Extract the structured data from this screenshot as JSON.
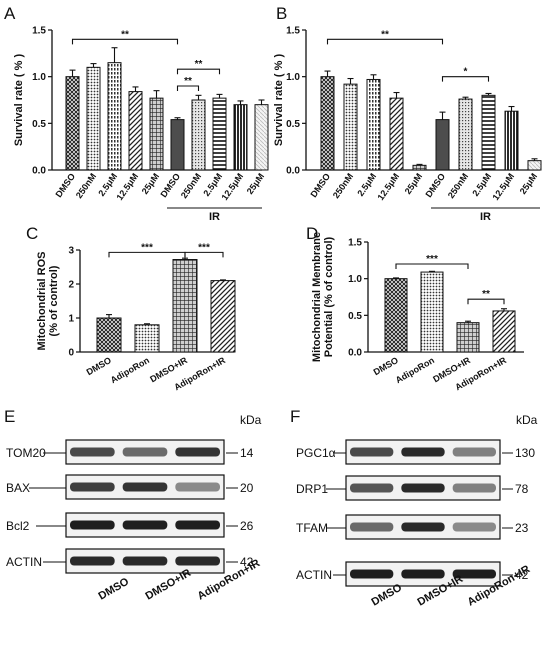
{
  "panels": {
    "A": "A",
    "B": "B",
    "C": "C",
    "D": "D",
    "E": "E",
    "F": "F"
  },
  "chart_data": [
    {
      "panel": "A",
      "type": "bar",
      "ylabel": "Survival rate ( % )",
      "ylim": [
        0,
        1.5
      ],
      "yticks": [
        "0.0",
        "0.5",
        "1.0",
        "1.5"
      ],
      "categories": [
        "DMSO",
        "250nM",
        "2.5μM",
        "12.5μM",
        "25μM",
        "DMSO",
        "250nM",
        "2.5μM",
        "12.5μM",
        "25μM"
      ],
      "values": [
        1.0,
        1.1,
        1.15,
        0.84,
        0.77,
        0.54,
        0.75,
        0.77,
        0.7,
        0.7
      ],
      "errors": [
        0.07,
        0.04,
        0.16,
        0.05,
        0.08,
        0.02,
        0.05,
        0.04,
        0.04,
        0.05
      ],
      "patterns": [
        "cross",
        "dots",
        "vdots",
        "rdiag",
        "grid",
        "solid",
        "dense",
        "hline",
        "vline",
        "light"
      ],
      "group_label": "IR",
      "group_start": 5,
      "annotations": [
        {
          "from": 0,
          "to": 5,
          "y": 1.4,
          "text": "**"
        },
        {
          "from": 5,
          "to": 7,
          "y": 1.08,
          "text": "**"
        },
        {
          "from": 5,
          "to": 6,
          "y": 0.9,
          "text": "**"
        }
      ]
    },
    {
      "panel": "B",
      "type": "bar",
      "ylabel": "Survival rate ( % )",
      "ylim": [
        0,
        1.5
      ],
      "yticks": [
        "0.0",
        "0.5",
        "1.0",
        "1.5"
      ],
      "categories": [
        "DMSO",
        "250nM",
        "2.5μM",
        "12.5μM",
        "25μM",
        "DMSO",
        "250nM",
        "2.5μM",
        "12.5μM",
        "25μM"
      ],
      "values": [
        1.0,
        0.92,
        0.97,
        0.77,
        0.05,
        0.54,
        0.76,
        0.8,
        0.63,
        0.1
      ],
      "errors": [
        0.06,
        0.06,
        0.05,
        0.06,
        0.01,
        0.08,
        0.02,
        0.02,
        0.05,
        0.02
      ],
      "patterns": [
        "cross",
        "dots",
        "vdots",
        "rdiag",
        "grid",
        "solid",
        "dense",
        "hline",
        "vline",
        "light"
      ],
      "group_label": "IR",
      "group_start": 5,
      "annotations": [
        {
          "from": 0,
          "to": 5,
          "y": 1.4,
          "text": "**"
        },
        {
          "from": 5,
          "to": 7,
          "y": 1.0,
          "text": "*"
        }
      ]
    },
    {
      "panel": "C",
      "type": "bar",
      "ylabel": "Mitochondrial ROS\n(% of control)",
      "ylim": [
        0,
        3
      ],
      "yticks": [
        "0",
        "1",
        "2",
        "3"
      ],
      "categories": [
        "DMSO",
        "AdipoRon",
        "DMSO+IR",
        "AdipoRon+IR"
      ],
      "values": [
        1.0,
        0.8,
        2.72,
        2.1
      ],
      "errors": [
        0.1,
        0.03,
        0.04,
        0.02
      ],
      "patterns": [
        "cross",
        "dots",
        "grid",
        "rdiag"
      ],
      "annotations": [
        {
          "from": 0,
          "to": 2,
          "y": 2.93,
          "text": "***"
        },
        {
          "from": 2,
          "to": 3,
          "y": 2.93,
          "text": "***"
        }
      ]
    },
    {
      "panel": "D",
      "type": "bar",
      "ylabel": "Mitochondrial Membrane\nPotential (% of control)",
      "ylim": [
        0,
        1.5
      ],
      "yticks": [
        "0.0",
        "0.5",
        "1.0",
        "1.5"
      ],
      "categories": [
        "DMSO",
        "AdipoRon",
        "DMSO+IR",
        "AdipoRon+IR"
      ],
      "values": [
        1.0,
        1.09,
        0.4,
        0.56
      ],
      "errors": [
        0.01,
        0.01,
        0.02,
        0.03
      ],
      "patterns": [
        "cross",
        "dots",
        "grid",
        "rdiag"
      ],
      "annotations": [
        {
          "from": 0,
          "to": 2,
          "y": 1.2,
          "text": "***"
        },
        {
          "from": 2,
          "to": 3,
          "y": 0.72,
          "text": "**"
        }
      ]
    }
  ],
  "blots": [
    {
      "panel": "E",
      "kda_label": "kDa",
      "rows": [
        {
          "name": "TOM20",
          "kda": "14",
          "bands": [
            0.75,
            0.6,
            0.85
          ]
        },
        {
          "name": "BAX",
          "kda": "20",
          "bands": [
            0.8,
            0.85,
            0.45
          ]
        },
        {
          "name": "Bcl2",
          "kda": "26",
          "bands": [
            0.95,
            0.95,
            0.95
          ]
        },
        {
          "name": "ACTIN",
          "kda": "42",
          "bands": [
            0.9,
            0.9,
            0.9
          ]
        }
      ],
      "lanes": [
        "DMSO",
        "DMSO+IR",
        "AdipoRon+IR"
      ]
    },
    {
      "panel": "F",
      "kda_label": "kDa",
      "rows": [
        {
          "name": "PGC1α",
          "kda": "130",
          "bands": [
            0.75,
            0.9,
            0.5
          ]
        },
        {
          "name": "DRP1",
          "kda": "78",
          "bands": [
            0.7,
            0.9,
            0.5
          ]
        },
        {
          "name": "TFAM",
          "kda": "23",
          "bands": [
            0.6,
            0.9,
            0.45
          ]
        },
        {
          "name": "ACTIN",
          "kda": "42",
          "bands": [
            0.95,
            0.95,
            0.95
          ]
        }
      ],
      "lanes": [
        "DMSO",
        "DMSO+IR",
        "AdipoRon+IR"
      ]
    }
  ]
}
